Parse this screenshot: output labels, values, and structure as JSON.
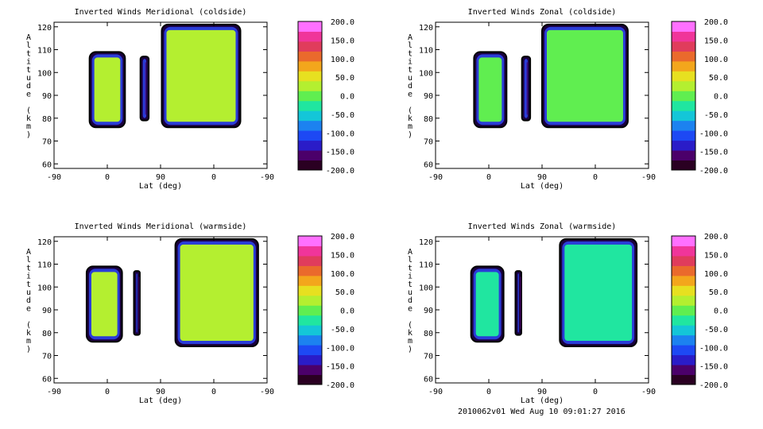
{
  "footer": "2010062v01 Wed Aug 10 09:01:27 2016",
  "colorbar": {
    "tick_labels": [
      "200.0",
      "150.0",
      "100.0",
      "50.0",
      "0.0",
      "-50.0",
      "-100.0",
      "-150.0",
      "-200.0"
    ],
    "range": [
      -200,
      200
    ],
    "colors": [
      "#2a0022",
      "#4b006a",
      "#2a1cc8",
      "#1d49f4",
      "#1c82f0",
      "#14c6d8",
      "#20e6a0",
      "#60ee50",
      "#b4ef30",
      "#e7e020",
      "#f3a61c",
      "#ea6a2c",
      "#e03c5c",
      "#f0359a",
      "#ff70ff"
    ]
  },
  "chart_data": [
    {
      "type": "heatmap",
      "title": "Inverted Winds Meridional (coldside)",
      "xlabel": "Lat (deg)",
      "ylabel": "Altitude (km)",
      "x_tick_labels": [
        "-90",
        "0",
        "90",
        "0",
        "-90"
      ],
      "y_tick_labels": [
        "60",
        "70",
        "80",
        "90",
        "100",
        "110",
        "120"
      ],
      "ylim": [
        58,
        122
      ],
      "value_range": [
        -200,
        200
      ],
      "regions": [
        {
          "name": "",
          "lat_range": [
            -30,
            30
          ],
          "alt_range": [
            76,
            109
          ],
          "mean_value": 20
        },
        {
          "name": "",
          "lat_range": [
            56,
            70
          ],
          "alt_range": [
            79,
            107
          ],
          "mean_value": -160
        },
        {
          "name": "",
          "lat_range": [
            92,
            225
          ],
          "alt_range": [
            76,
            121
          ],
          "mean_value": 25
        }
      ]
    },
    {
      "type": "heatmap",
      "title": "Inverted Winds Zonal (coldside)",
      "xlabel": "Lat (deg)",
      "ylabel": "Altitude (km)",
      "x_tick_labels": [
        "-90",
        "0",
        "90",
        "0",
        "-90"
      ],
      "y_tick_labels": [
        "60",
        "70",
        "80",
        "90",
        "100",
        "110",
        "120"
      ],
      "ylim": [
        58,
        122
      ],
      "value_range": [
        -200,
        200
      ],
      "regions": [
        {
          "name": "",
          "lat_range": [
            -25,
            30
          ],
          "alt_range": [
            76,
            109
          ],
          "mean_value": 10
        },
        {
          "name": "",
          "lat_range": [
            56,
            70
          ],
          "alt_range": [
            79,
            107
          ],
          "mean_value": -170
        },
        {
          "name": "",
          "lat_range": [
            90,
            235
          ],
          "alt_range": [
            76,
            121
          ],
          "mean_value": 10
        }
      ]
    },
    {
      "type": "heatmap",
      "title": "Inverted Winds Meridional (warmside)",
      "xlabel": "Lat (deg)",
      "ylabel": "Altitude (km)",
      "x_tick_labels": [
        "-90",
        "0",
        "90",
        "0",
        "-90"
      ],
      "y_tick_labels": [
        "60",
        "70",
        "80",
        "90",
        "100",
        "110",
        "120"
      ],
      "ylim": [
        58,
        122
      ],
      "value_range": [
        -200,
        200
      ],
      "regions": [
        {
          "name": "",
          "lat_range": [
            -35,
            25
          ],
          "alt_range": [
            76,
            109
          ],
          "mean_value": 15
        },
        {
          "name": "",
          "lat_range": [
            45,
            55
          ],
          "alt_range": [
            79,
            107
          ],
          "mean_value": -160
        },
        {
          "name": "",
          "lat_range": [
            115,
            255
          ],
          "alt_range": [
            74,
            121
          ],
          "mean_value": 30
        }
      ]
    },
    {
      "type": "heatmap",
      "title": "Inverted Winds Zonal (warmside)",
      "xlabel": "Lat (deg)",
      "ylabel": "Altitude (km)",
      "x_tick_labels": [
        "-90",
        "0",
        "90",
        "0",
        "-90"
      ],
      "y_tick_labels": [
        "60",
        "70",
        "80",
        "90",
        "100",
        "110",
        "120"
      ],
      "ylim": [
        58,
        122
      ],
      "value_range": [
        -200,
        200
      ],
      "regions": [
        {
          "name": "",
          "lat_range": [
            -30,
            25
          ],
          "alt_range": [
            76,
            109
          ],
          "mean_value": -40
        },
        {
          "name": "",
          "lat_range": [
            45,
            55
          ],
          "alt_range": [
            79,
            107
          ],
          "mean_value": -160
        },
        {
          "name": "",
          "lat_range": [
            120,
            250
          ],
          "alt_range": [
            74,
            121
          ],
          "mean_value": -30
        }
      ]
    }
  ]
}
